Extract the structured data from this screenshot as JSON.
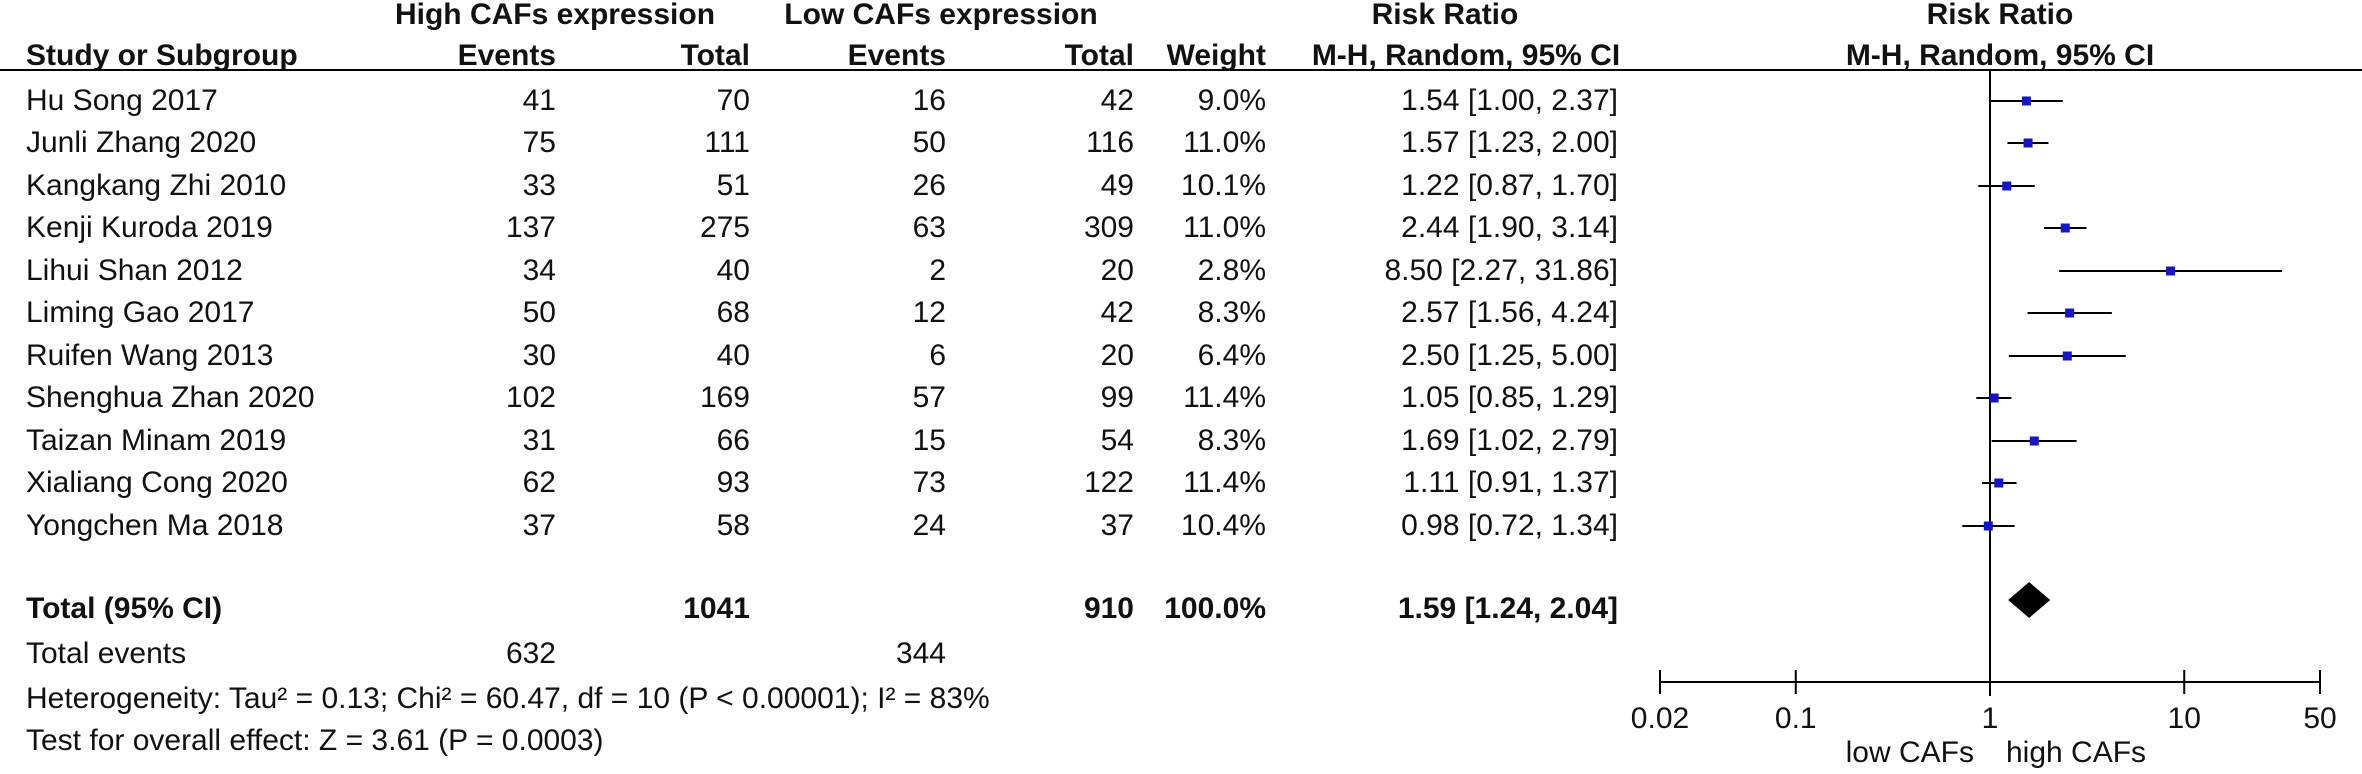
{
  "headers": {
    "group_high": "High CAFs expression",
    "group_low": "Low CAFs expression",
    "study": "Study or Subgroup",
    "events_high": "Events",
    "total_high": "Total",
    "events_low": "Events",
    "total_low": "Total",
    "weight": "Weight",
    "rr_title": "Risk Ratio",
    "rr_method": "M-H, Random, 95% CI",
    "plot_title": "Risk Ratio",
    "plot_method": "M-H, Random, 95% CI"
  },
  "studies": [
    {
      "name": "Hu Song 2017",
      "events_high": "41",
      "total_high": "70",
      "events_low": "16",
      "total_low": "42",
      "weight": "9.0%",
      "ci_text": "1.54 [1.00, 2.37]"
    },
    {
      "name": "Junli Zhang 2020",
      "events_high": "75",
      "total_high": "111",
      "events_low": "50",
      "total_low": "116",
      "weight": "11.0%",
      "ci_text": "1.57 [1.23, 2.00]"
    },
    {
      "name": "Kangkang Zhi 2010",
      "events_high": "33",
      "total_high": "51",
      "events_low": "26",
      "total_low": "49",
      "weight": "10.1%",
      "ci_text": "1.22 [0.87, 1.70]"
    },
    {
      "name": "Kenji Kuroda 2019",
      "events_high": "137",
      "total_high": "275",
      "events_low": "63",
      "total_low": "309",
      "weight": "11.0%",
      "ci_text": "2.44 [1.90, 3.14]"
    },
    {
      "name": "Lihui Shan 2012",
      "events_high": "34",
      "total_high": "40",
      "events_low": "2",
      "total_low": "20",
      "weight": "2.8%",
      "ci_text": "8.50 [2.27, 31.86]"
    },
    {
      "name": "Liming Gao 2017",
      "events_high": "50",
      "total_high": "68",
      "events_low": "12",
      "total_low": "42",
      "weight": "8.3%",
      "ci_text": "2.57 [1.56, 4.24]"
    },
    {
      "name": "Ruifen Wang 2013",
      "events_high": "30",
      "total_high": "40",
      "events_low": "6",
      "total_low": "20",
      "weight": "6.4%",
      "ci_text": "2.50 [1.25, 5.00]"
    },
    {
      "name": "Shenghua Zhan 2020",
      "events_high": "102",
      "total_high": "169",
      "events_low": "57",
      "total_low": "99",
      "weight": "11.4%",
      "ci_text": "1.05 [0.85, 1.29]"
    },
    {
      "name": "Taizan Minam 2019",
      "events_high": "31",
      "total_high": "66",
      "events_low": "15",
      "total_low": "54",
      "weight": "8.3%",
      "ci_text": "1.69 [1.02, 2.79]"
    },
    {
      "name": "Xialiang Cong 2020",
      "events_high": "62",
      "total_high": "93",
      "events_low": "73",
      "total_low": "122",
      "weight": "11.4%",
      "ci_text": "1.11 [0.91, 1.37]"
    },
    {
      "name": "Yongchen Ma 2018",
      "events_high": "37",
      "total_high": "58",
      "events_low": "24",
      "total_low": "37",
      "weight": "10.4%",
      "ci_text": "0.98 [0.72, 1.34]"
    }
  ],
  "total": {
    "label": "Total (95% CI)",
    "total_high": "1041",
    "total_low": "910",
    "weight": "100.0%",
    "ci_text": "1.59 [1.24, 2.04]"
  },
  "total_events": {
    "label": "Total events",
    "events_high": "632",
    "events_low": "344"
  },
  "heterogeneity": "Heterogeneity: Tau² = 0.13; Chi² = 60.47, df = 10 (P < 0.00001); I² = 83%",
  "overall_effect": "Test for overall effect: Z = 3.61 (P = 0.0003)",
  "chart_data": {
    "type": "scatter",
    "subtype": "forest",
    "x_scale": "log",
    "xlim": [
      0.02,
      50
    ],
    "ticks": [
      "0.02",
      "0.1",
      "1",
      "10",
      "50"
    ],
    "reference_line": 1,
    "favours_left": "low CAFs",
    "favours_right": "high CAFs",
    "marker_color": "#1515c8",
    "studies": [
      {
        "rr": 1.54,
        "lo": 1.0,
        "hi": 2.37
      },
      {
        "rr": 1.57,
        "lo": 1.23,
        "hi": 2.0
      },
      {
        "rr": 1.22,
        "lo": 0.87,
        "hi": 1.7
      },
      {
        "rr": 2.44,
        "lo": 1.9,
        "hi": 3.14
      },
      {
        "rr": 8.5,
        "lo": 2.27,
        "hi": 31.86
      },
      {
        "rr": 2.57,
        "lo": 1.56,
        "hi": 4.24
      },
      {
        "rr": 2.5,
        "lo": 1.25,
        "hi": 5.0
      },
      {
        "rr": 1.05,
        "lo": 0.85,
        "hi": 1.29
      },
      {
        "rr": 1.69,
        "lo": 1.02,
        "hi": 2.79
      },
      {
        "rr": 1.11,
        "lo": 0.91,
        "hi": 1.37
      },
      {
        "rr": 0.98,
        "lo": 0.72,
        "hi": 1.34
      }
    ],
    "pooled": {
      "rr": 1.59,
      "lo": 1.24,
      "hi": 2.04
    }
  }
}
